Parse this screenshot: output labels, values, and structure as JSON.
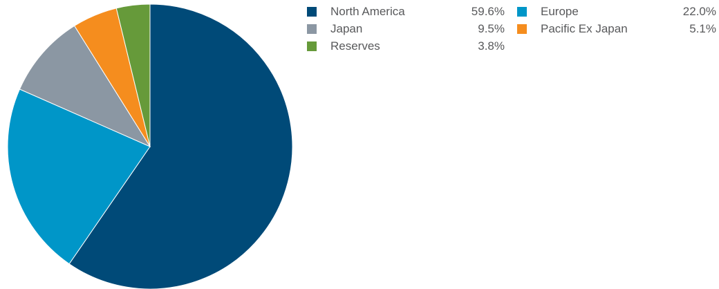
{
  "chart_data": {
    "type": "pie",
    "title": "",
    "start": "12 o'clock",
    "direction": "clockwise",
    "slices": [
      {
        "label": "North America",
        "value": 59.6,
        "display": "59.6%",
        "color": "#004a78"
      },
      {
        "label": "Europe",
        "value": 22.0,
        "display": "22.0%",
        "color": "#0096c8"
      },
      {
        "label": "Japan",
        "value": 9.5,
        "display": "9.5%",
        "color": "#8b97a3"
      },
      {
        "label": "Pacific Ex Japan",
        "value": 5.1,
        "display": "5.1%",
        "color": "#f58d1e"
      },
      {
        "label": "Reserves",
        "value": 3.8,
        "display": "3.8%",
        "color": "#669a3a"
      }
    ],
    "legend_order": [
      "North America",
      "Europe",
      "Japan",
      "Pacific Ex Japan",
      "Reserves"
    ],
    "legend_placement": "top-right",
    "legend_columns": 2
  }
}
